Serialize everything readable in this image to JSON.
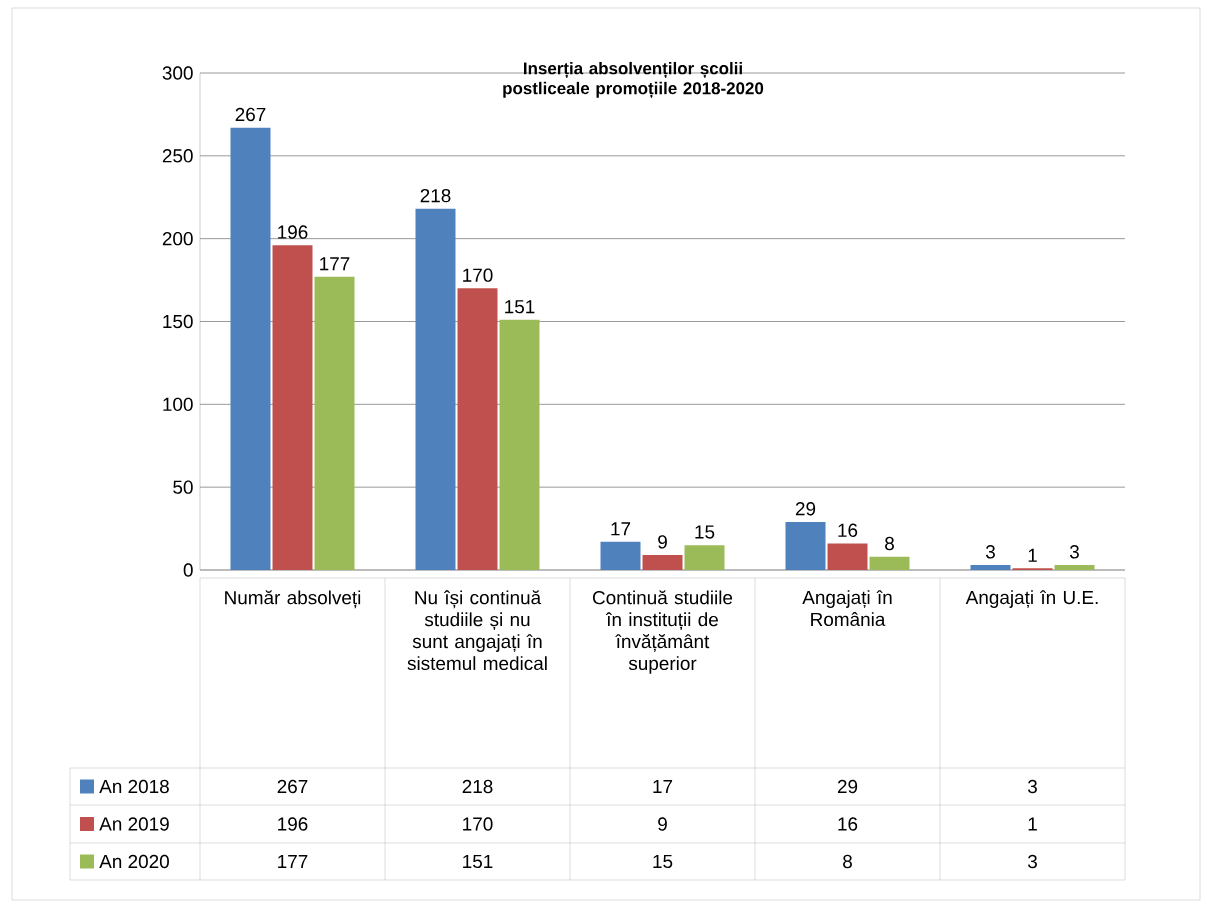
{
  "chart_data": {
    "type": "bar",
    "title": "Inserția absolvenților școlii postliceale promoțiile 2018-2020",
    "categories": [
      "Număr absolveți",
      "Nu își continuă studiile și nu sunt angajați în sistemul medical",
      "Continuă studiile în instituții de învățământ superior",
      "Angajați în România",
      "Angajați în U.E."
    ],
    "series": [
      {
        "name": "An 2018",
        "color": "#4f81bd",
        "values": [
          267,
          218,
          17,
          29,
          3
        ],
        "value_labels": [
          "267",
          "218",
          "17",
          "29",
          "3"
        ]
      },
      {
        "name": "An 2019",
        "color": "#c0504d",
        "values": [
          196,
          170,
          9,
          16,
          1
        ],
        "value_labels": [
          "196",
          "170",
          "9",
          "16",
          "1"
        ]
      },
      {
        "name": "An 2020",
        "color": "#9bbb59",
        "values": [
          177,
          151,
          15,
          8,
          3
        ],
        "value_labels": [
          "177",
          "151",
          "15",
          "8",
          "3"
        ]
      }
    ],
    "ylim": [
      0,
      300
    ],
    "yticks": [
      0,
      50,
      100,
      150,
      200,
      250,
      300
    ],
    "grid": "y",
    "data_labels": true,
    "legend": "bottom"
  }
}
